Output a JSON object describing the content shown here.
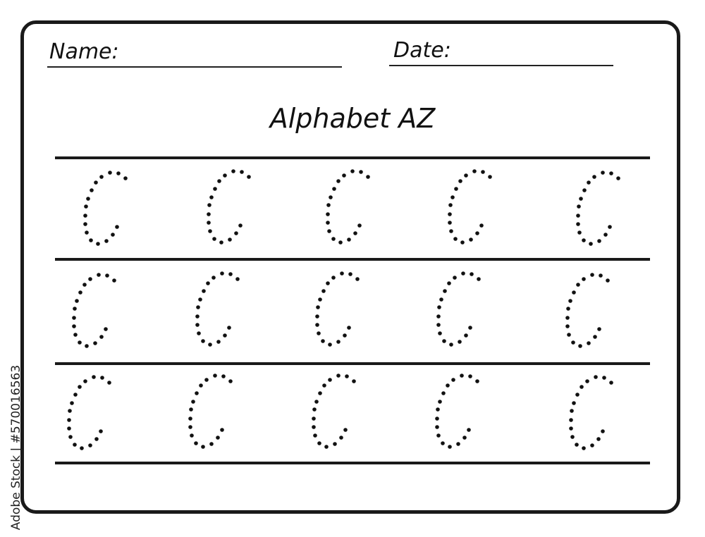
{
  "header": {
    "name_label": "Name:",
    "date_label": "Date:"
  },
  "title": "Alphabet AZ",
  "worksheet": {
    "rows": 3,
    "letters_per_row": 5
  },
  "watermark": "Adobe Stock | #570016563"
}
